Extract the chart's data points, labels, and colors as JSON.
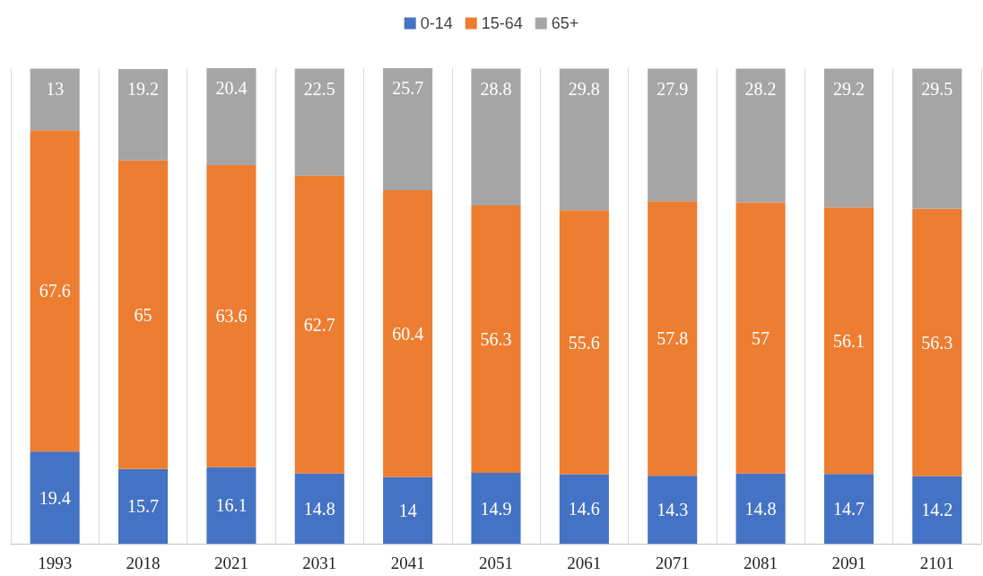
{
  "chart_data": {
    "type": "bar",
    "stacked": true,
    "data_labels": true,
    "grid": "x",
    "legend": "top",
    "categories": [
      "1993",
      "2018",
      "2021",
      "2031",
      "2041",
      "2051",
      "2061",
      "2071",
      "2081",
      "2091",
      "2101"
    ],
    "series": [
      {
        "name": "0-14",
        "color": "#4472c4",
        "values": [
          19.4,
          15.7,
          16.1,
          14.8,
          14,
          14.9,
          14.6,
          14.3,
          14.8,
          14.7,
          14.2
        ]
      },
      {
        "name": "15-64",
        "color": "#ed7d31",
        "values": [
          67.6,
          65,
          63.6,
          62.7,
          60.4,
          56.3,
          55.6,
          57.8,
          57,
          56.1,
          56.3
        ]
      },
      {
        "name": "65+",
        "color": "#a5a5a5",
        "values": [
          13,
          19.2,
          20.4,
          22.5,
          25.7,
          28.8,
          29.8,
          27.9,
          28.2,
          29.2,
          29.5
        ]
      }
    ]
  }
}
